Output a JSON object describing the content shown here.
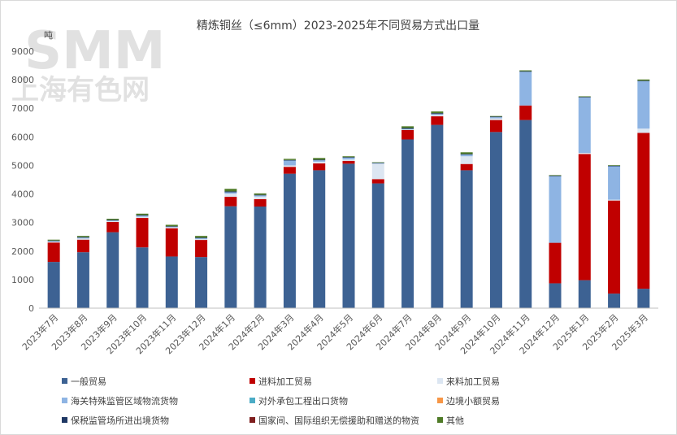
{
  "watermark": {
    "brand": "SMM",
    "brand_cn": "上海有色网"
  },
  "chart_data": {
    "type": "bar",
    "stacked": true,
    "title": "精炼铜丝（≤6mm）2023-2025年不同贸易方式出口量",
    "ylabel": "吨",
    "xlabel": "",
    "ylim": [
      0,
      9000
    ],
    "yticks": [
      0,
      1000,
      2000,
      3000,
      4000,
      5000,
      6000,
      7000,
      8000,
      9000
    ],
    "legend_position": "bottom",
    "categories": [
      "2023年7月",
      "2023年8月",
      "2023年9月",
      "2023年10月",
      "2023年11月",
      "2023年12月",
      "2024年1月",
      "2024年2月",
      "2024年3月",
      "2024年4月",
      "2024年5月",
      "2024年6月",
      "2024年7月",
      "2024年8月",
      "2024年9月",
      "2024年10月",
      "2024年11月",
      "2024年12月",
      "2025年1月",
      "2025年2月",
      "2025年3月"
    ],
    "series": [
      {
        "name": "一般贸易",
        "color": "#3d6293",
        "values": [
          1620,
          1960,
          2660,
          2130,
          1810,
          1790,
          3570,
          3560,
          4710,
          4830,
          5060,
          4370,
          5910,
          6420,
          4830,
          6170,
          6590,
          870,
          980,
          510,
          680
        ]
      },
      {
        "name": "进料加工贸易",
        "color": "#c00000",
        "values": [
          680,
          440,
          360,
          1030,
          990,
          600,
          330,
          260,
          240,
          240,
          100,
          150,
          330,
          300,
          220,
          420,
          510,
          1420,
          4420,
          3260,
          5460
        ]
      },
      {
        "name": "来料加工贸易",
        "color": "#dce6f2",
        "values": [
          30,
          40,
          30,
          40,
          30,
          30,
          110,
          90,
          50,
          60,
          50,
          540,
          20,
          50,
          270,
          60,
          0,
          0,
          40,
          30,
          150
        ]
      },
      {
        "name": "海关特殊监管区域物流货物",
        "color": "#8eb4e3",
        "values": [
          20,
          30,
          20,
          40,
          20,
          30,
          50,
          40,
          170,
          50,
          60,
          20,
          20,
          30,
          60,
          40,
          1180,
          2330,
          1940,
          1170,
          1660
        ]
      },
      {
        "name": "对外承包工程出口货物",
        "color": "#4bacc6",
        "values": [
          0,
          0,
          0,
          0,
          0,
          0,
          0,
          0,
          0,
          0,
          0,
          0,
          0,
          0,
          0,
          0,
          0,
          0,
          0,
          0,
          0
        ]
      },
      {
        "name": "边境小额贸易",
        "color": "#f79646",
        "values": [
          0,
          0,
          0,
          0,
          0,
          0,
          0,
          0,
          0,
          0,
          0,
          0,
          0,
          0,
          0,
          0,
          0,
          0,
          0,
          0,
          0
        ]
      },
      {
        "name": "保税监管场所进出境货物",
        "color": "#1f3864",
        "values": [
          20,
          20,
          20,
          20,
          20,
          20,
          30,
          20,
          20,
          20,
          20,
          20,
          30,
          30,
          20,
          20,
          20,
          20,
          20,
          20,
          20
        ]
      },
      {
        "name": "国家间、国际组织无偿援助和赠送的物资",
        "color": "#7f1f1f",
        "values": [
          0,
          0,
          0,
          0,
          0,
          0,
          0,
          0,
          0,
          0,
          0,
          0,
          0,
          0,
          0,
          0,
          0,
          0,
          0,
          0,
          0
        ]
      },
      {
        "name": "其他",
        "color": "#4f7b27",
        "values": [
          30,
          40,
          40,
          50,
          50,
          60,
          90,
          50,
          40,
          60,
          30,
          10,
          60,
          60,
          60,
          20,
          30,
          20,
          20,
          20,
          40
        ]
      }
    ]
  }
}
